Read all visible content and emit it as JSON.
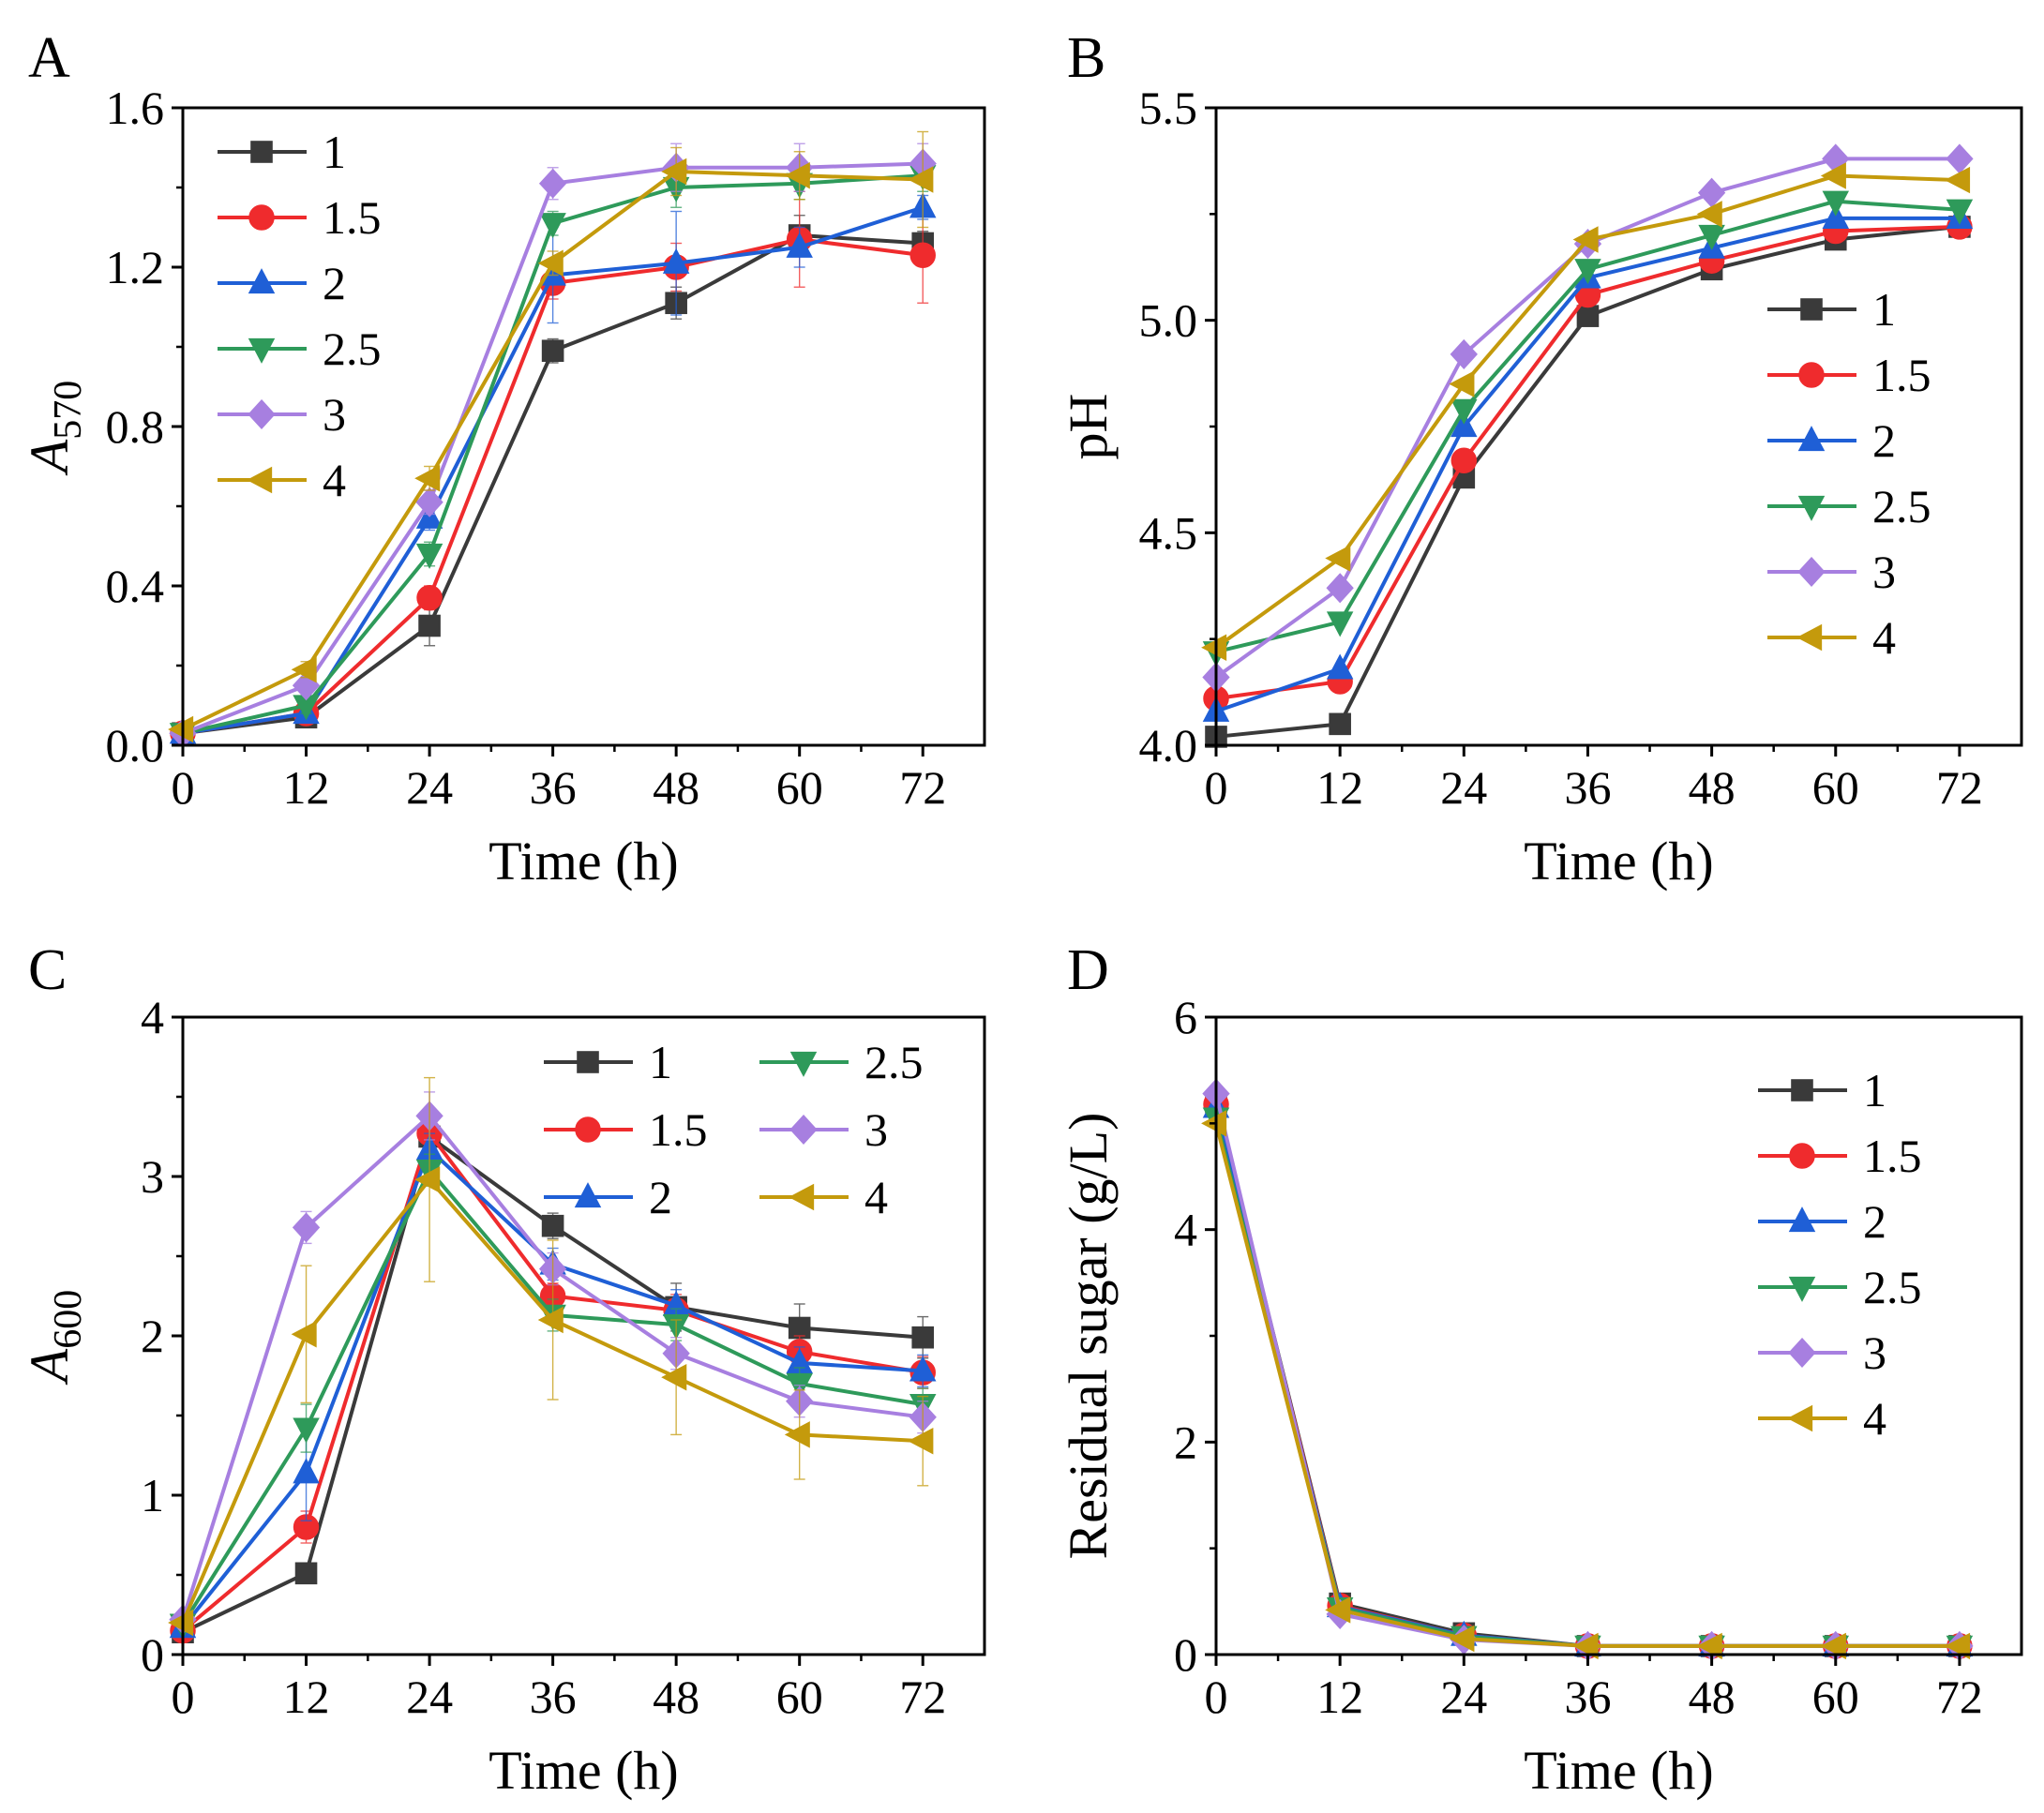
{
  "colors": {
    "1": "#3a3a3a",
    "1.5": "#ef2b2d",
    "2": "#1f5fd6",
    "2.5": "#2e9a5a",
    "3": "#a77fe0",
    "4": "#c49a0c"
  },
  "chart_data": [
    {
      "id": "A",
      "panel_label": "A",
      "type": "line",
      "xlabel": "Time (h)",
      "ylabel_main": "A",
      "ylabel_sub": "570",
      "x": [
        0,
        12,
        24,
        36,
        48,
        60,
        72
      ],
      "xlim": [
        0,
        78
      ],
      "xticks": [
        "0",
        "12",
        "24",
        "36",
        "48",
        "60",
        "72"
      ],
      "ylim": [
        0,
        1.6
      ],
      "yticks": [
        0,
        0.4,
        0.8,
        1.2,
        1.6
      ],
      "ytick_labels": [
        "0.0",
        "0.4",
        "0.8",
        "1.2",
        "1.6"
      ],
      "legend": {
        "position": "top-left",
        "columns": 1
      },
      "series": [
        {
          "name": "1",
          "marker": "square",
          "values": [
            0.03,
            0.07,
            0.3,
            0.99,
            1.11,
            1.28,
            1.26
          ],
          "errors": [
            0.01,
            0.02,
            0.05,
            0.03,
            0.04,
            0.05,
            0.03
          ]
        },
        {
          "name": "1.5",
          "marker": "circle",
          "values": [
            0.03,
            0.08,
            0.37,
            1.16,
            1.2,
            1.27,
            1.23
          ],
          "errors": [
            0.01,
            0.02,
            0.03,
            0.04,
            0.06,
            0.12,
            0.12
          ]
        },
        {
          "name": "2",
          "marker": "triangle-up",
          "values": [
            0.03,
            0.08,
            0.57,
            1.18,
            1.21,
            1.25,
            1.35
          ],
          "errors": [
            0.01,
            0.02,
            0.03,
            0.12,
            0.13,
            0.05,
            0.03
          ]
        },
        {
          "name": "2.5",
          "marker": "triangle-down",
          "values": [
            0.03,
            0.1,
            0.48,
            1.31,
            1.4,
            1.41,
            1.43
          ],
          "errors": [
            0.01,
            0.02,
            0.03,
            0.03,
            0.05,
            0.04,
            0.04
          ]
        },
        {
          "name": "3",
          "marker": "diamond",
          "values": [
            0.03,
            0.15,
            0.61,
            1.41,
            1.45,
            1.45,
            1.46
          ],
          "errors": [
            0.01,
            0.02,
            0.03,
            0.04,
            0.06,
            0.06,
            0.05
          ]
        },
        {
          "name": "4",
          "marker": "triangle-left",
          "values": [
            0.04,
            0.19,
            0.67,
            1.21,
            1.44,
            1.43,
            1.42
          ],
          "errors": [
            0.01,
            0.02,
            0.03,
            0.03,
            0.06,
            0.06,
            0.12
          ]
        }
      ]
    },
    {
      "id": "B",
      "panel_label": "B",
      "type": "line",
      "xlabel": "Time (h)",
      "ylabel_main": "pH",
      "ylabel_sub": "",
      "x": [
        0,
        12,
        24,
        36,
        48,
        60,
        72
      ],
      "xlim": [
        0,
        78
      ],
      "xticks": [
        "0",
        "12",
        "24",
        "36",
        "48",
        "60",
        "72"
      ],
      "ylim": [
        4.0,
        5.5
      ],
      "yticks": [
        4.0,
        4.5,
        5.0,
        5.5
      ],
      "ytick_labels": [
        "4.0",
        "4.5",
        "5.0",
        "5.5"
      ],
      "legend": {
        "position": "right",
        "columns": 1
      },
      "series": [
        {
          "name": "1",
          "marker": "square",
          "values": [
            4.02,
            4.05,
            4.63,
            5.01,
            5.12,
            5.19,
            5.22
          ]
        },
        {
          "name": "1.5",
          "marker": "circle",
          "values": [
            4.11,
            4.15,
            4.67,
            5.06,
            5.14,
            5.21,
            5.22
          ]
        },
        {
          "name": "2",
          "marker": "triangle-up",
          "values": [
            4.08,
            4.18,
            4.75,
            5.1,
            5.17,
            5.24,
            5.24
          ]
        },
        {
          "name": "2.5",
          "marker": "triangle-down",
          "values": [
            4.22,
            4.29,
            4.79,
            5.12,
            5.2,
            5.28,
            5.26
          ]
        },
        {
          "name": "3",
          "marker": "diamond",
          "values": [
            4.16,
            4.37,
            4.92,
            5.18,
            5.3,
            5.38,
            5.38
          ]
        },
        {
          "name": "4",
          "marker": "triangle-left",
          "values": [
            4.23,
            4.44,
            4.85,
            5.19,
            5.25,
            5.34,
            5.33
          ]
        }
      ]
    },
    {
      "id": "C",
      "panel_label": "C",
      "type": "line",
      "xlabel": "Time (h)",
      "ylabel_main": "A",
      "ylabel_sub": "600",
      "x": [
        0,
        12,
        24,
        36,
        48,
        60,
        72
      ],
      "xlim": [
        0,
        78
      ],
      "xticks": [
        "0",
        "12",
        "24",
        "36",
        "48",
        "60",
        "72"
      ],
      "ylim": [
        0,
        4
      ],
      "yticks": [
        0,
        1,
        2,
        3,
        4
      ],
      "ytick_labels": [
        "0",
        "1",
        "2",
        "3",
        "4"
      ],
      "legend": {
        "position": "top-right",
        "columns": 2
      },
      "series": [
        {
          "name": "1",
          "marker": "square",
          "values": [
            0.14,
            0.51,
            3.25,
            2.69,
            2.18,
            2.05,
            1.99
          ],
          "errors": [
            0.02,
            0.05,
            0.1,
            0.08,
            0.15,
            0.15,
            0.13
          ]
        },
        {
          "name": "1.5",
          "marker": "circle",
          "values": [
            0.15,
            0.8,
            3.27,
            2.25,
            2.16,
            1.9,
            1.77
          ],
          "errors": [
            0.02,
            0.1,
            0.1,
            0.08,
            0.1,
            0.1,
            0.1
          ]
        },
        {
          "name": "2",
          "marker": "triangle-up",
          "values": [
            0.17,
            1.14,
            3.17,
            2.45,
            2.19,
            1.83,
            1.78
          ],
          "errors": [
            0.02,
            0.3,
            0.1,
            0.1,
            0.1,
            0.1,
            0.1
          ]
        },
        {
          "name": "2.5",
          "marker": "triangle-down",
          "values": [
            0.19,
            1.42,
            3.04,
            2.13,
            2.07,
            1.7,
            1.57
          ],
          "errors": [
            0.02,
            0.15,
            0.1,
            0.1,
            0.1,
            0.1,
            0.1
          ]
        },
        {
          "name": "3",
          "marker": "diamond",
          "values": [
            0.22,
            2.68,
            3.38,
            2.42,
            1.89,
            1.59,
            1.49
          ],
          "errors": [
            0.02,
            0.1,
            0.15,
            0.1,
            0.1,
            0.1,
            0.1
          ]
        },
        {
          "name": "4",
          "marker": "triangle-left",
          "values": [
            0.2,
            2.01,
            2.98,
            2.1,
            1.74,
            1.38,
            1.34
          ],
          "errors": [
            0.02,
            0.43,
            0.64,
            0.5,
            0.36,
            0.28,
            0.28
          ]
        }
      ]
    },
    {
      "id": "D",
      "panel_label": "D",
      "type": "line",
      "xlabel": "Time (h)",
      "ylabel_main": "Residual sugar (g/L)",
      "ylabel_sub": "",
      "x": [
        0,
        12,
        24,
        36,
        48,
        60,
        72
      ],
      "xlim": [
        0,
        78
      ],
      "xticks": [
        "0",
        "12",
        "24",
        "36",
        "48",
        "60",
        "72"
      ],
      "ylim": [
        0,
        6
      ],
      "yticks": [
        0,
        2,
        4,
        6
      ],
      "ytick_labels": [
        "0",
        "2",
        "4",
        "6"
      ],
      "legend": {
        "position": "top-right",
        "columns": 1
      },
      "series": [
        {
          "name": "1",
          "marker": "square",
          "values": [
            5.2,
            0.48,
            0.2,
            0.08,
            0.08,
            0.08,
            0.08
          ]
        },
        {
          "name": "1.5",
          "marker": "circle",
          "values": [
            5.18,
            0.46,
            0.18,
            0.08,
            0.08,
            0.08,
            0.08
          ]
        },
        {
          "name": "2",
          "marker": "triangle-up",
          "values": [
            5.15,
            0.45,
            0.18,
            0.08,
            0.08,
            0.08,
            0.08
          ]
        },
        {
          "name": "2.5",
          "marker": "triangle-down",
          "values": [
            5.05,
            0.44,
            0.17,
            0.08,
            0.08,
            0.08,
            0.08
          ]
        },
        {
          "name": "3",
          "marker": "diamond",
          "values": [
            5.28,
            0.38,
            0.14,
            0.08,
            0.08,
            0.08,
            0.08
          ]
        },
        {
          "name": "4",
          "marker": "triangle-left",
          "values": [
            5.0,
            0.42,
            0.15,
            0.08,
            0.08,
            0.08,
            0.08
          ]
        }
      ]
    }
  ]
}
